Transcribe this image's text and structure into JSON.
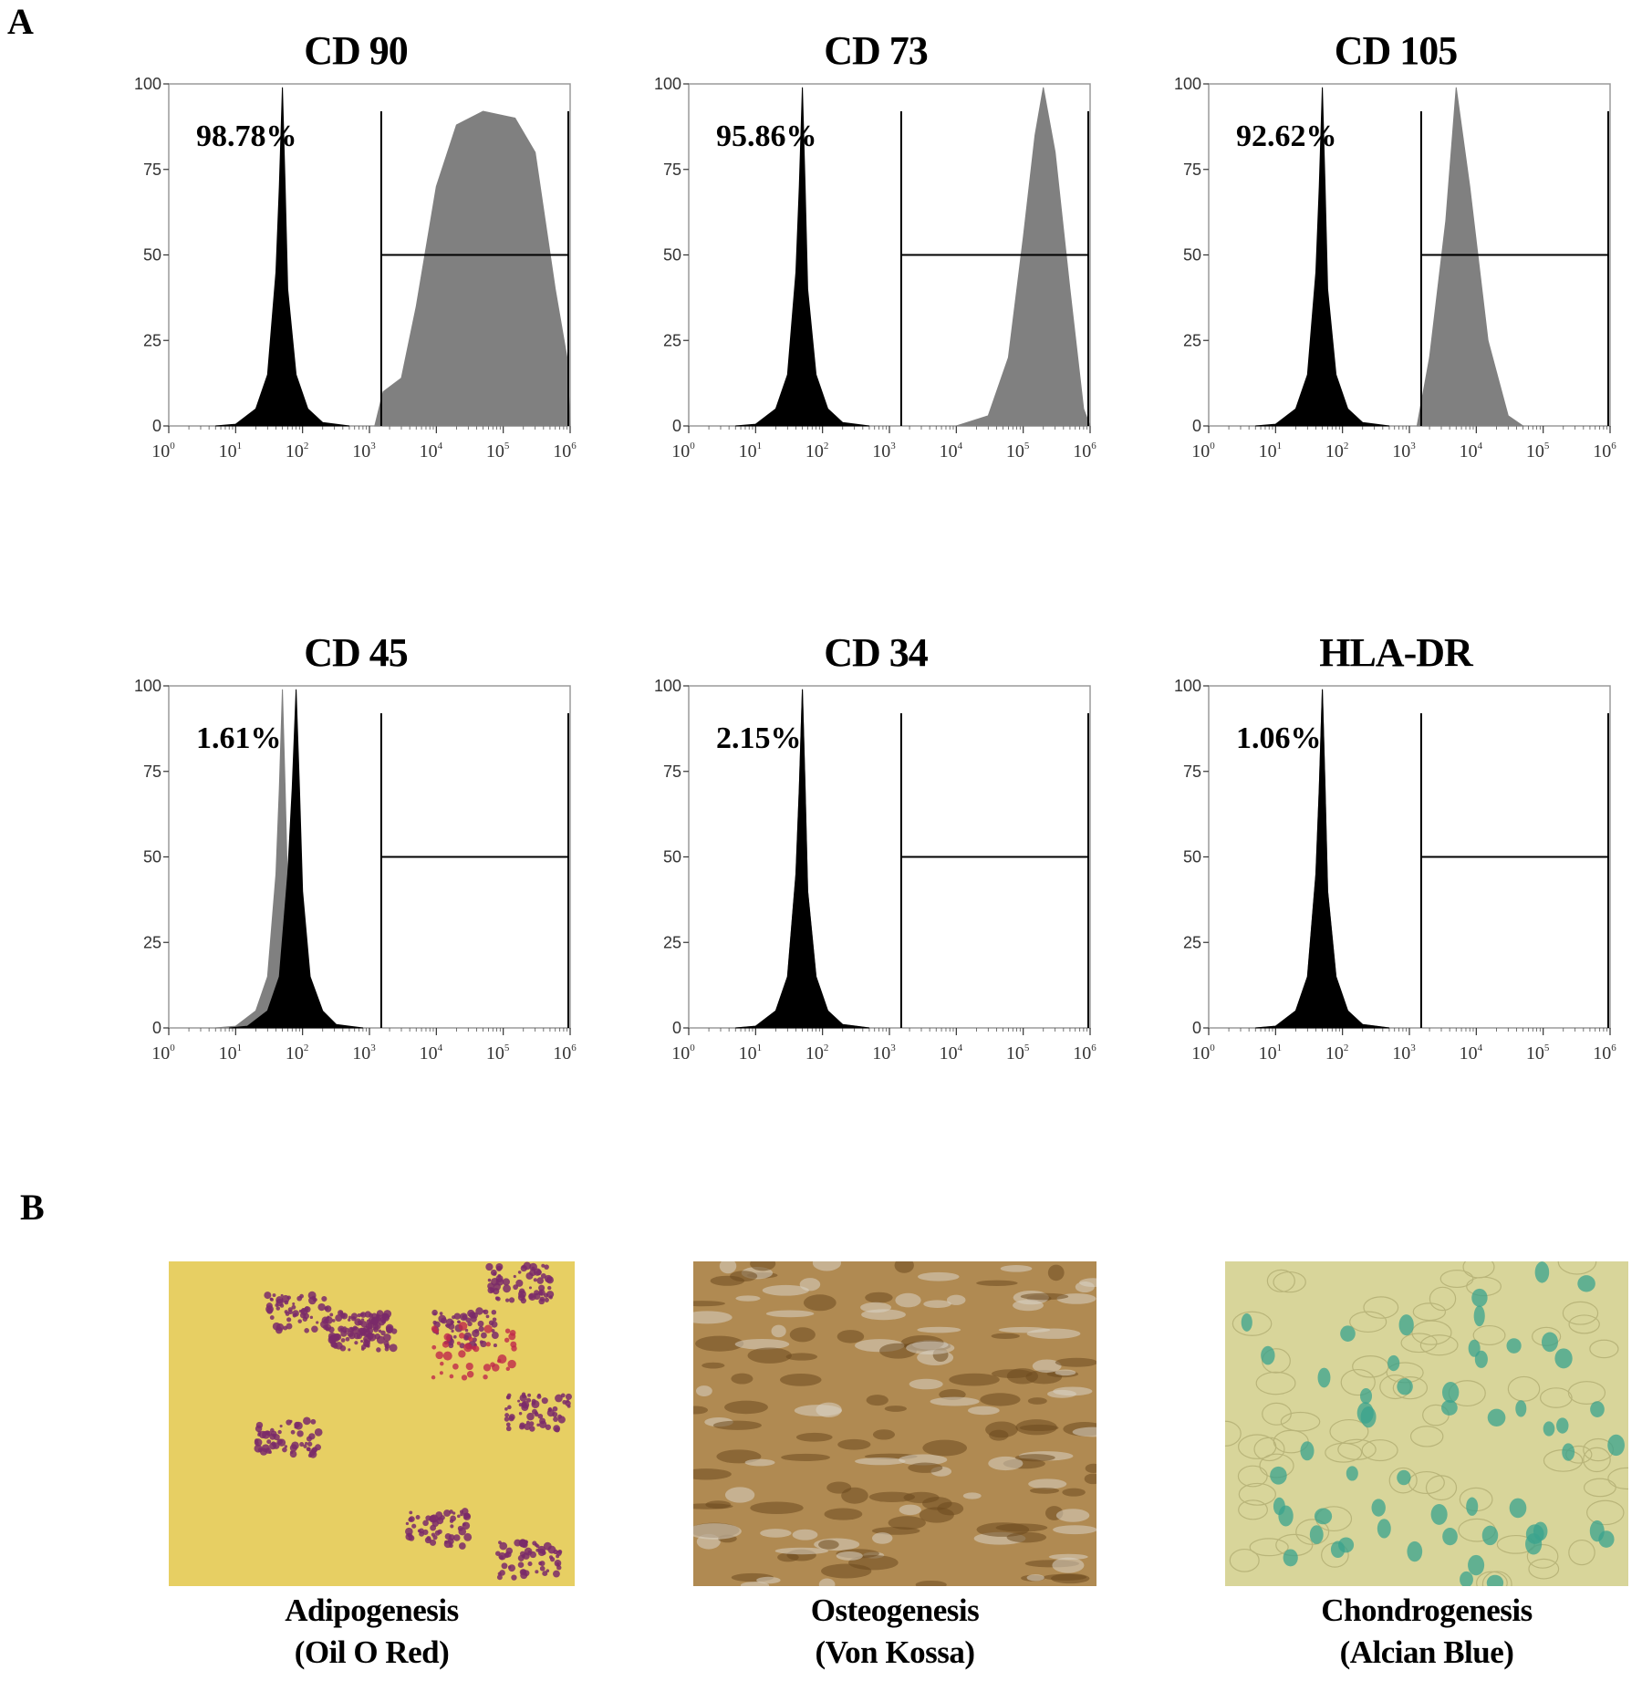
{
  "figure": {
    "panel_a_label": "A",
    "panel_b_label": "B"
  },
  "chart_data": [
    {
      "type": "area",
      "title": "CD 90",
      "annotation": "98.78%",
      "ylim": [
        0,
        100
      ],
      "yticks": [
        0,
        25,
        50,
        75,
        100
      ],
      "xscale": "log",
      "xlim": [
        1,
        1000000
      ],
      "xticks": [
        "10^0",
        "10^1",
        "10^2",
        "10^3",
        "10^4",
        "10^5",
        "10^6"
      ],
      "gate": [
        1500,
        1000000
      ],
      "series": [
        {
          "color": "#000000",
          "points": [
            [
              5,
              0
            ],
            [
              10,
              0.5
            ],
            [
              20,
              5
            ],
            [
              30,
              15
            ],
            [
              40,
              45
            ],
            [
              45,
              70
            ],
            [
              50,
              99
            ],
            [
              55,
              70
            ],
            [
              60,
              40
            ],
            [
              80,
              15
            ],
            [
              120,
              5
            ],
            [
              200,
              1
            ],
            [
              500,
              0
            ]
          ]
        },
        {
          "color": "#808080",
          "points": [
            [
              1200,
              0
            ],
            [
              1600,
              10
            ],
            [
              3000,
              14
            ],
            [
              5000,
              35
            ],
            [
              10000,
              70
            ],
            [
              20000,
              88
            ],
            [
              50000,
              92
            ],
            [
              150000,
              90
            ],
            [
              300000,
              80
            ],
            [
              600000,
              40
            ],
            [
              900000,
              20
            ],
            [
              1000000,
              0
            ]
          ]
        }
      ]
    },
    {
      "type": "area",
      "title": "CD 73",
      "annotation": "95.86%",
      "ylim": [
        0,
        100
      ],
      "yticks": [
        0,
        25,
        50,
        75,
        100
      ],
      "xscale": "log",
      "xlim": [
        1,
        1000000
      ],
      "xticks": [
        "10^0",
        "10^1",
        "10^2",
        "10^3",
        "10^4",
        "10^5",
        "10^6"
      ],
      "gate": [
        1500,
        1000000
      ],
      "series": [
        {
          "color": "#000000",
          "points": [
            [
              5,
              0
            ],
            [
              10,
              0.5
            ],
            [
              20,
              5
            ],
            [
              30,
              15
            ],
            [
              40,
              45
            ],
            [
              45,
              70
            ],
            [
              50,
              99
            ],
            [
              55,
              70
            ],
            [
              60,
              40
            ],
            [
              80,
              15
            ],
            [
              120,
              5
            ],
            [
              200,
              1
            ],
            [
              500,
              0
            ]
          ]
        },
        {
          "color": "#808080",
          "points": [
            [
              10000,
              0
            ],
            [
              30000,
              3
            ],
            [
              60000,
              20
            ],
            [
              100000,
              55
            ],
            [
              150000,
              85
            ],
            [
              200000,
              99
            ],
            [
              300000,
              80
            ],
            [
              500000,
              40
            ],
            [
              800000,
              5
            ],
            [
              1000000,
              0
            ]
          ]
        }
      ]
    },
    {
      "type": "area",
      "title": "CD 105",
      "annotation": "92.62%",
      "ylim": [
        0,
        100
      ],
      "yticks": [
        0,
        25,
        50,
        75,
        100
      ],
      "xscale": "log",
      "xlim": [
        1,
        1000000
      ],
      "xticks": [
        "10^0",
        "10^1",
        "10^2",
        "10^3",
        "10^4",
        "10^5",
        "10^6"
      ],
      "gate": [
        1500,
        1000000
      ],
      "series": [
        {
          "color": "#000000",
          "points": [
            [
              5,
              0
            ],
            [
              10,
              0.5
            ],
            [
              20,
              5
            ],
            [
              30,
              15
            ],
            [
              40,
              45
            ],
            [
              45,
              70
            ],
            [
              50,
              99
            ],
            [
              55,
              70
            ],
            [
              60,
              40
            ],
            [
              80,
              15
            ],
            [
              120,
              5
            ],
            [
              200,
              1
            ],
            [
              500,
              0
            ]
          ]
        },
        {
          "color": "#808080",
          "points": [
            [
              1300,
              0
            ],
            [
              2000,
              20
            ],
            [
              3500,
              60
            ],
            [
              5000,
              99
            ],
            [
              8000,
              70
            ],
            [
              15000,
              25
            ],
            [
              30000,
              3
            ],
            [
              50000,
              0
            ]
          ]
        }
      ]
    },
    {
      "type": "area",
      "title": "CD 45",
      "annotation": "1.61%",
      "ylim": [
        0,
        100
      ],
      "yticks": [
        0,
        25,
        50,
        75,
        100
      ],
      "xscale": "log",
      "xlim": [
        1,
        1000000
      ],
      "xticks": [
        "10^0",
        "10^1",
        "10^2",
        "10^3",
        "10^4",
        "10^5",
        "10^6"
      ],
      "gate": [
        1500,
        1000000
      ],
      "series": [
        {
          "color": "#808080",
          "points": [
            [
              5,
              0
            ],
            [
              10,
              0.5
            ],
            [
              20,
              5
            ],
            [
              30,
              15
            ],
            [
              40,
              45
            ],
            [
              45,
              70
            ],
            [
              50,
              99
            ],
            [
              55,
              70
            ],
            [
              60,
              40
            ],
            [
              80,
              15
            ],
            [
              120,
              5
            ],
            [
              200,
              1
            ],
            [
              500,
              0
            ]
          ]
        },
        {
          "color": "#000000",
          "points": [
            [
              8,
              0
            ],
            [
              15,
              0.5
            ],
            [
              30,
              5
            ],
            [
              45,
              15
            ],
            [
              60,
              45
            ],
            [
              70,
              70
            ],
            [
              80,
              99
            ],
            [
              90,
              70
            ],
            [
              100,
              40
            ],
            [
              130,
              15
            ],
            [
              200,
              5
            ],
            [
              320,
              1
            ],
            [
              800,
              0
            ]
          ]
        }
      ]
    },
    {
      "type": "area",
      "title": "CD 34",
      "annotation": "2.15%",
      "ylim": [
        0,
        100
      ],
      "yticks": [
        0,
        25,
        50,
        75,
        100
      ],
      "xscale": "log",
      "xlim": [
        1,
        1000000
      ],
      "xticks": [
        "10^0",
        "10^1",
        "10^2",
        "10^3",
        "10^4",
        "10^5",
        "10^6"
      ],
      "gate": [
        1500,
        1000000
      ],
      "series": [
        {
          "color": "#808080",
          "points": [
            [
              5,
              0
            ],
            [
              10,
              0.5
            ],
            [
              20,
              5
            ],
            [
              30,
              15
            ],
            [
              40,
              45
            ],
            [
              45,
              70
            ],
            [
              50,
              99
            ],
            [
              55,
              70
            ],
            [
              60,
              40
            ],
            [
              80,
              15
            ],
            [
              120,
              5
            ],
            [
              200,
              1
            ],
            [
              500,
              0
            ]
          ]
        },
        {
          "color": "#000000",
          "points": [
            [
              5,
              0
            ],
            [
              10,
              0.5
            ],
            [
              20,
              5
            ],
            [
              30,
              15
            ],
            [
              40,
              45
            ],
            [
              45,
              70
            ],
            [
              50,
              99
            ],
            [
              55,
              70
            ],
            [
              60,
              40
            ],
            [
              80,
              15
            ],
            [
              120,
              5
            ],
            [
              200,
              1
            ],
            [
              500,
              0
            ]
          ]
        }
      ]
    },
    {
      "type": "area",
      "title": "HLA-DR",
      "annotation": "1.06%",
      "ylim": [
        0,
        100
      ],
      "yticks": [
        0,
        25,
        50,
        75,
        100
      ],
      "xscale": "log",
      "xlim": [
        1,
        1000000
      ],
      "xticks": [
        "10^0",
        "10^1",
        "10^2",
        "10^3",
        "10^4",
        "10^5",
        "10^6"
      ],
      "gate": [
        1500,
        1000000
      ],
      "series": [
        {
          "color": "#808080",
          "points": [
            [
              5,
              0
            ],
            [
              10,
              0.5
            ],
            [
              20,
              5
            ],
            [
              30,
              15
            ],
            [
              40,
              45
            ],
            [
              45,
              70
            ],
            [
              50,
              99
            ],
            [
              55,
              70
            ],
            [
              60,
              40
            ],
            [
              80,
              15
            ],
            [
              120,
              5
            ],
            [
              200,
              1
            ],
            [
              500,
              0
            ]
          ]
        },
        {
          "color": "#000000",
          "points": [
            [
              5,
              0
            ],
            [
              10,
              0.5
            ],
            [
              20,
              5
            ],
            [
              30,
              15
            ],
            [
              40,
              45
            ],
            [
              45,
              70
            ],
            [
              50,
              99
            ],
            [
              55,
              70
            ],
            [
              60,
              40
            ],
            [
              80,
              15
            ],
            [
              120,
              5
            ],
            [
              200,
              1
            ],
            [
              500,
              0
            ]
          ]
        }
      ]
    }
  ],
  "stains": [
    {
      "caption_line1": "Adipogenesis",
      "caption_line2": "(Oil O Red)",
      "bg": "#e7cf63",
      "spot": "#7a2a6a"
    },
    {
      "caption_line1": "Osteogenesis",
      "caption_line2": "(Von Kossa)",
      "bg": "#b08a52",
      "spot": "#6d4a1f"
    },
    {
      "caption_line1": "Chondrogenesis",
      "caption_line2": "(Alcian Blue)",
      "bg": "#d8d59a",
      "spot": "#3aa38d"
    }
  ]
}
